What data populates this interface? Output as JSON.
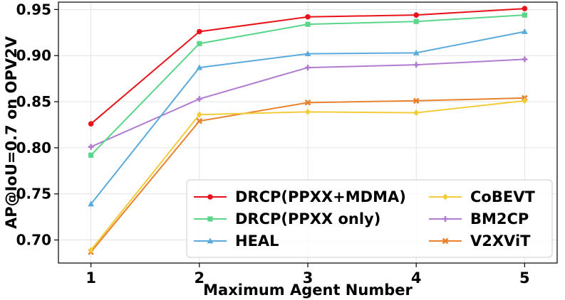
{
  "chart_data": {
    "type": "line",
    "xlabel": "Maximum Agent Number",
    "ylabel": "AP@IoU=0.7 on OPV2V",
    "x": [
      1,
      2,
      3,
      4,
      5
    ],
    "xlim": [
      0.7,
      5.3
    ],
    "ylim": [
      0.675,
      0.958
    ],
    "xticks": [
      1,
      2,
      3,
      4,
      5
    ],
    "yticks": [
      0.7,
      0.75,
      0.8,
      0.85,
      0.9,
      0.95
    ],
    "grid": true,
    "legend_position": "lower-right",
    "legend_columns": 2,
    "series": [
      {
        "name": "DRCP(PPXX+MDMA)",
        "color": "#e8131a",
        "marker": "circle",
        "values": [
          0.826,
          0.926,
          0.942,
          0.944,
          0.951
        ]
      },
      {
        "name": "DRCP(PPXX only)",
        "color": "#5ad68a",
        "marker": "square",
        "values": [
          0.792,
          0.913,
          0.934,
          0.937,
          0.944
        ]
      },
      {
        "name": "HEAL",
        "color": "#5aabdc",
        "marker": "triangle",
        "values": [
          0.739,
          0.887,
          0.902,
          0.903,
          0.926
        ]
      },
      {
        "name": "CoBEVT",
        "color": "#f2cb3a",
        "marker": "diamond",
        "values": [
          0.689,
          0.836,
          0.839,
          0.838,
          0.851
        ]
      },
      {
        "name": "BM2CP",
        "color": "#b07cd0",
        "marker": "plus",
        "values": [
          0.801,
          0.853,
          0.887,
          0.89,
          0.896
        ]
      },
      {
        "name": "V2XViT",
        "color": "#e8822e",
        "marker": "x",
        "values": [
          0.687,
          0.829,
          0.849,
          0.851,
          0.854
        ]
      }
    ]
  }
}
